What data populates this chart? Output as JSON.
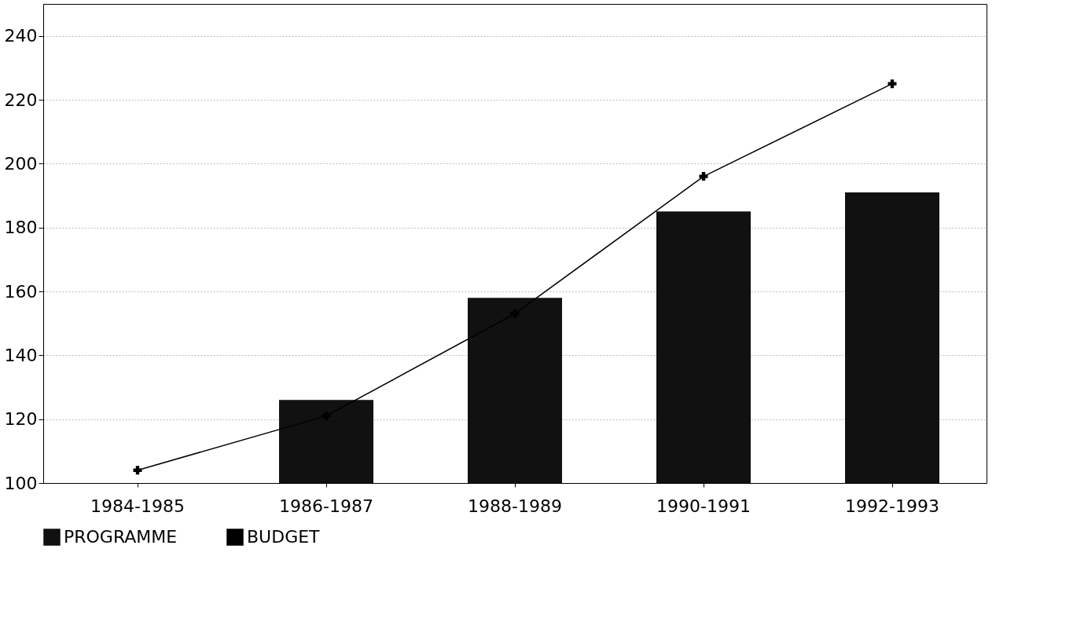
{
  "chart_data": {
    "type": "bar",
    "categories": [
      "1984-1985",
      "1986-1987",
      "1988-1989",
      "1990-1991",
      "1992-1993"
    ],
    "series": [
      {
        "name": "PROGRAMME",
        "color": "#111111",
        "values": [
          100,
          126,
          158,
          185,
          191
        ]
      },
      {
        "name": "BUDGET",
        "type": "line",
        "color": "#000000",
        "marker": "cross",
        "values": [
          104,
          121,
          153,
          196,
          225
        ]
      }
    ],
    "ylim": [
      100,
      250
    ],
    "yticks": [
      100,
      120,
      140,
      160,
      180,
      200,
      220,
      240
    ],
    "grid": "y",
    "legend": "bottom"
  }
}
